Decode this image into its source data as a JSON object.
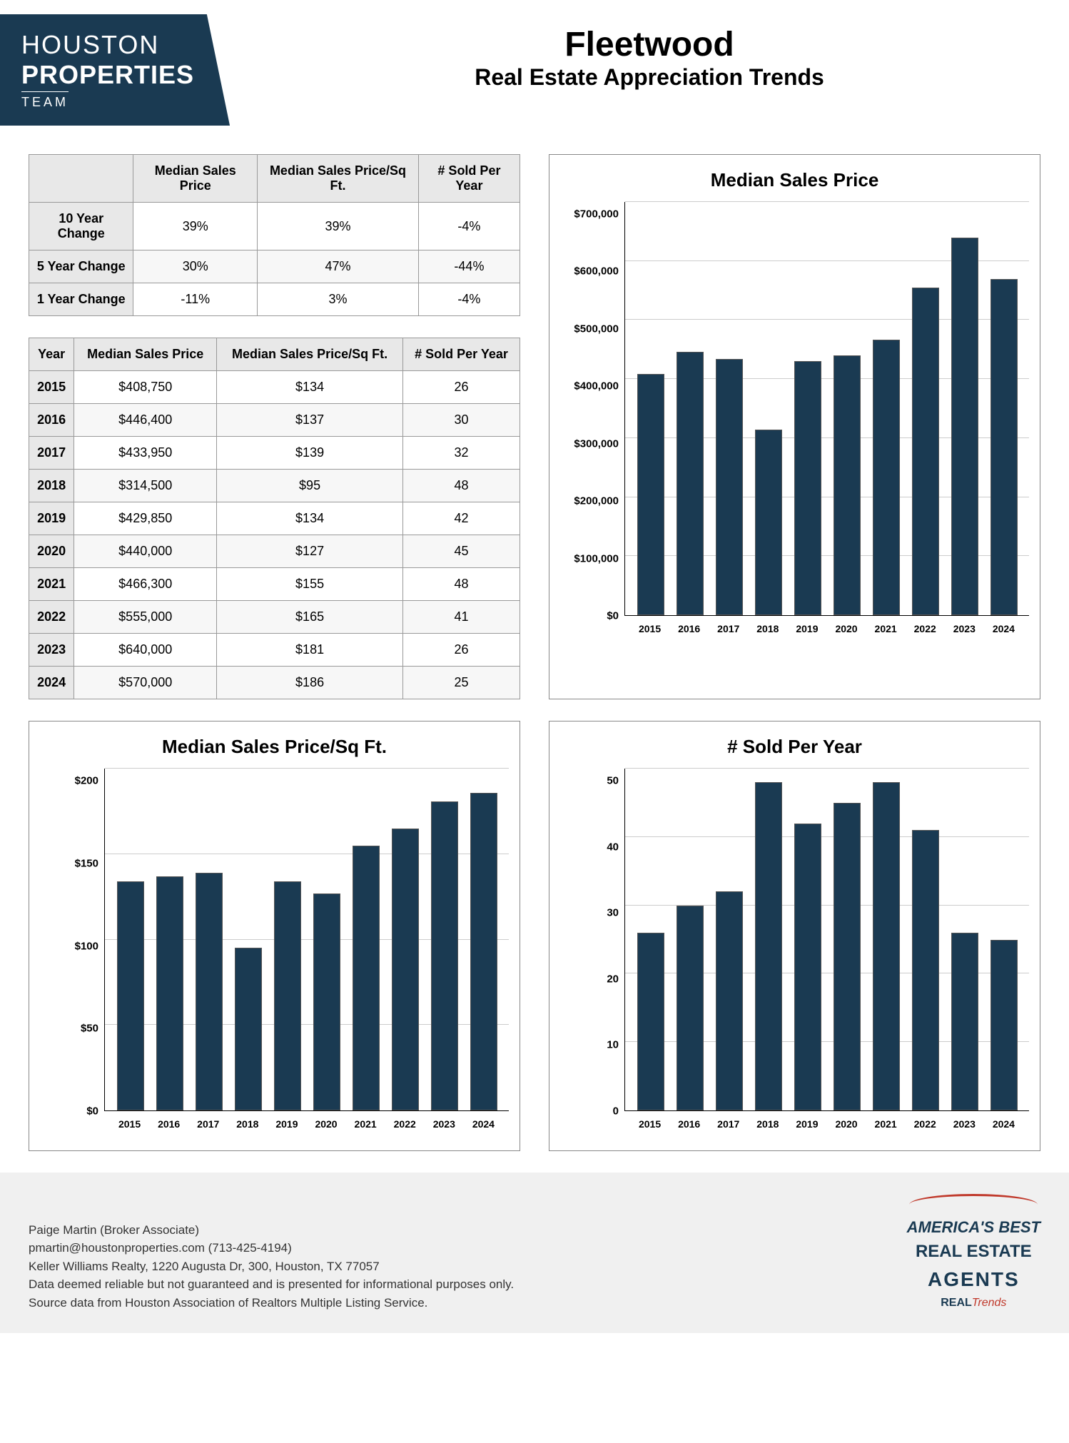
{
  "header": {
    "logo_line1": "HOUSTON",
    "logo_line2": "PROPERTIES",
    "logo_line3": "TEAM",
    "title": "Fleetwood",
    "subtitle": "Real Estate Appreciation Trends"
  },
  "summary_table": {
    "columns": [
      "",
      "Median Sales Price",
      "Median Sales Price/Sq Ft.",
      "# Sold Per Year"
    ],
    "rows": [
      {
        "label": "10 Year Change",
        "cells": [
          "39%",
          "39%",
          "-4%"
        ]
      },
      {
        "label": "5 Year Change",
        "cells": [
          "30%",
          "47%",
          "-44%"
        ]
      },
      {
        "label": "1 Year Change",
        "cells": [
          "-11%",
          "3%",
          "-4%"
        ]
      }
    ]
  },
  "yearly_table": {
    "columns": [
      "Year",
      "Median Sales Price",
      "Median Sales Price/Sq Ft.",
      "# Sold Per Year"
    ],
    "rows": [
      {
        "label": "2015",
        "cells": [
          "$408,750",
          "$134",
          "26"
        ]
      },
      {
        "label": "2016",
        "cells": [
          "$446,400",
          "$137",
          "30"
        ]
      },
      {
        "label": "2017",
        "cells": [
          "$433,950",
          "$139",
          "32"
        ]
      },
      {
        "label": "2018",
        "cells": [
          "$314,500",
          "$95",
          "48"
        ]
      },
      {
        "label": "2019",
        "cells": [
          "$429,850",
          "$134",
          "42"
        ]
      },
      {
        "label": "2020",
        "cells": [
          "$440,000",
          "$127",
          "45"
        ]
      },
      {
        "label": "2021",
        "cells": [
          "$466,300",
          "$155",
          "48"
        ]
      },
      {
        "label": "2022",
        "cells": [
          "$555,000",
          "$165",
          "41"
        ]
      },
      {
        "label": "2023",
        "cells": [
          "$640,000",
          "$181",
          "26"
        ]
      },
      {
        "label": "2024",
        "cells": [
          "$570,000",
          "$186",
          "25"
        ]
      }
    ]
  },
  "chart_price": {
    "type": "bar",
    "title": "Median Sales Price",
    "categories": [
      "2015",
      "2016",
      "2017",
      "2018",
      "2019",
      "2020",
      "2021",
      "2022",
      "2023",
      "2024"
    ],
    "values": [
      408750,
      446400,
      433950,
      314500,
      429850,
      440000,
      466300,
      555000,
      640000,
      570000
    ],
    "ylim": [
      0,
      700000
    ],
    "yticks": [
      "$0",
      "$100,000",
      "$200,000",
      "$300,000",
      "$400,000",
      "$500,000",
      "$600,000",
      "$700,000"
    ],
    "bar_color": "#1a3a52",
    "grid_color": "#cccccc",
    "background_color": "#ffffff",
    "title_fontsize": 26,
    "label_fontsize": 14
  },
  "chart_sqft": {
    "type": "bar",
    "title": "Median Sales Price/Sq Ft.",
    "categories": [
      "2015",
      "2016",
      "2017",
      "2018",
      "2019",
      "2020",
      "2021",
      "2022",
      "2023",
      "2024"
    ],
    "values": [
      134,
      137,
      139,
      95,
      134,
      127,
      155,
      165,
      181,
      186
    ],
    "ylim": [
      0,
      200
    ],
    "yticks": [
      "$0",
      "$50",
      "$100",
      "$150",
      "$200"
    ],
    "bar_color": "#1a3a52",
    "grid_color": "#cccccc",
    "background_color": "#ffffff",
    "title_fontsize": 26,
    "label_fontsize": 14
  },
  "chart_sold": {
    "type": "bar",
    "title": "# Sold Per Year",
    "categories": [
      "2015",
      "2016",
      "2017",
      "2018",
      "2019",
      "2020",
      "2021",
      "2022",
      "2023",
      "2024"
    ],
    "values": [
      26,
      30,
      32,
      48,
      42,
      45,
      48,
      41,
      26,
      25
    ],
    "ylim": [
      0,
      50
    ],
    "yticks": [
      "0",
      "10",
      "20",
      "30",
      "40",
      "50"
    ],
    "bar_color": "#1a3a52",
    "grid_color": "#cccccc",
    "background_color": "#ffffff",
    "title_fontsize": 26,
    "label_fontsize": 14
  },
  "footer": {
    "line1": "Paige Martin (Broker Associate)",
    "line2": "pmartin@houstonproperties.com (713-425-4194)",
    "line3": "Keller Williams Realty, 1220 Augusta Dr, 300, Houston, TX 77057",
    "line4": "Data deemed reliable but not guaranteed and is presented for informational purposes only.",
    "line5": "Source data from Houston Association of Realtors Multiple Listing Service.",
    "badge": {
      "line1": "AMERICA'S BEST",
      "line2": "REAL ESTATE",
      "line3": "AGENTS",
      "line4a": "REAL",
      "line4b": "Trends"
    }
  }
}
